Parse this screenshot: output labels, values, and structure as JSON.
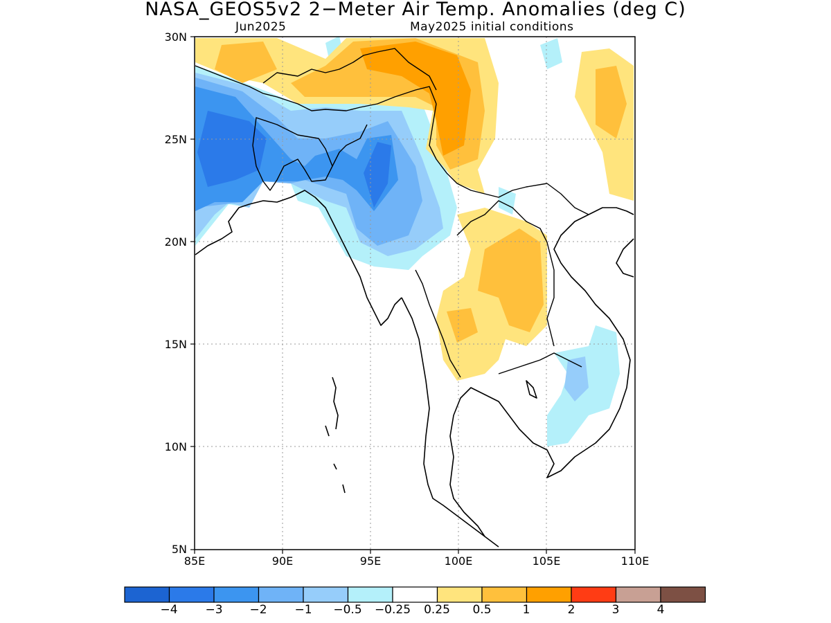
{
  "title": "NASA_GEOS5v2 2−Meter Air Temp. Anomalies (deg C)",
  "subtitle_left": "Jun2025",
  "subtitle_right": "May2025 initial conditions",
  "map": {
    "lon_range": [
      85,
      110
    ],
    "lat_range": [
      5,
      30
    ],
    "lon_ticks": [
      "85E",
      "90E",
      "95E",
      "100E",
      "105E",
      "110E"
    ],
    "lat_ticks": [
      "30N",
      "25N",
      "20N",
      "15N",
      "10N",
      "5N"
    ],
    "grid": "dotted"
  },
  "colorbar": {
    "colors": [
      "#1c64d2",
      "#2b7ae9",
      "#3c95f0",
      "#6fb3f7",
      "#96cdfa",
      "#b4f0fa",
      "#ffffff",
      "#ffe47d",
      "#ffc03c",
      "#ffa000",
      "#ff3c14",
      "#c8a094",
      "#7d5044"
    ],
    "labels": [
      "−4",
      "−3",
      "−2",
      "−1",
      "−0.5",
      "−0.25",
      "0.25",
      "0.5",
      "1",
      "2",
      "3",
      "4"
    ]
  }
}
